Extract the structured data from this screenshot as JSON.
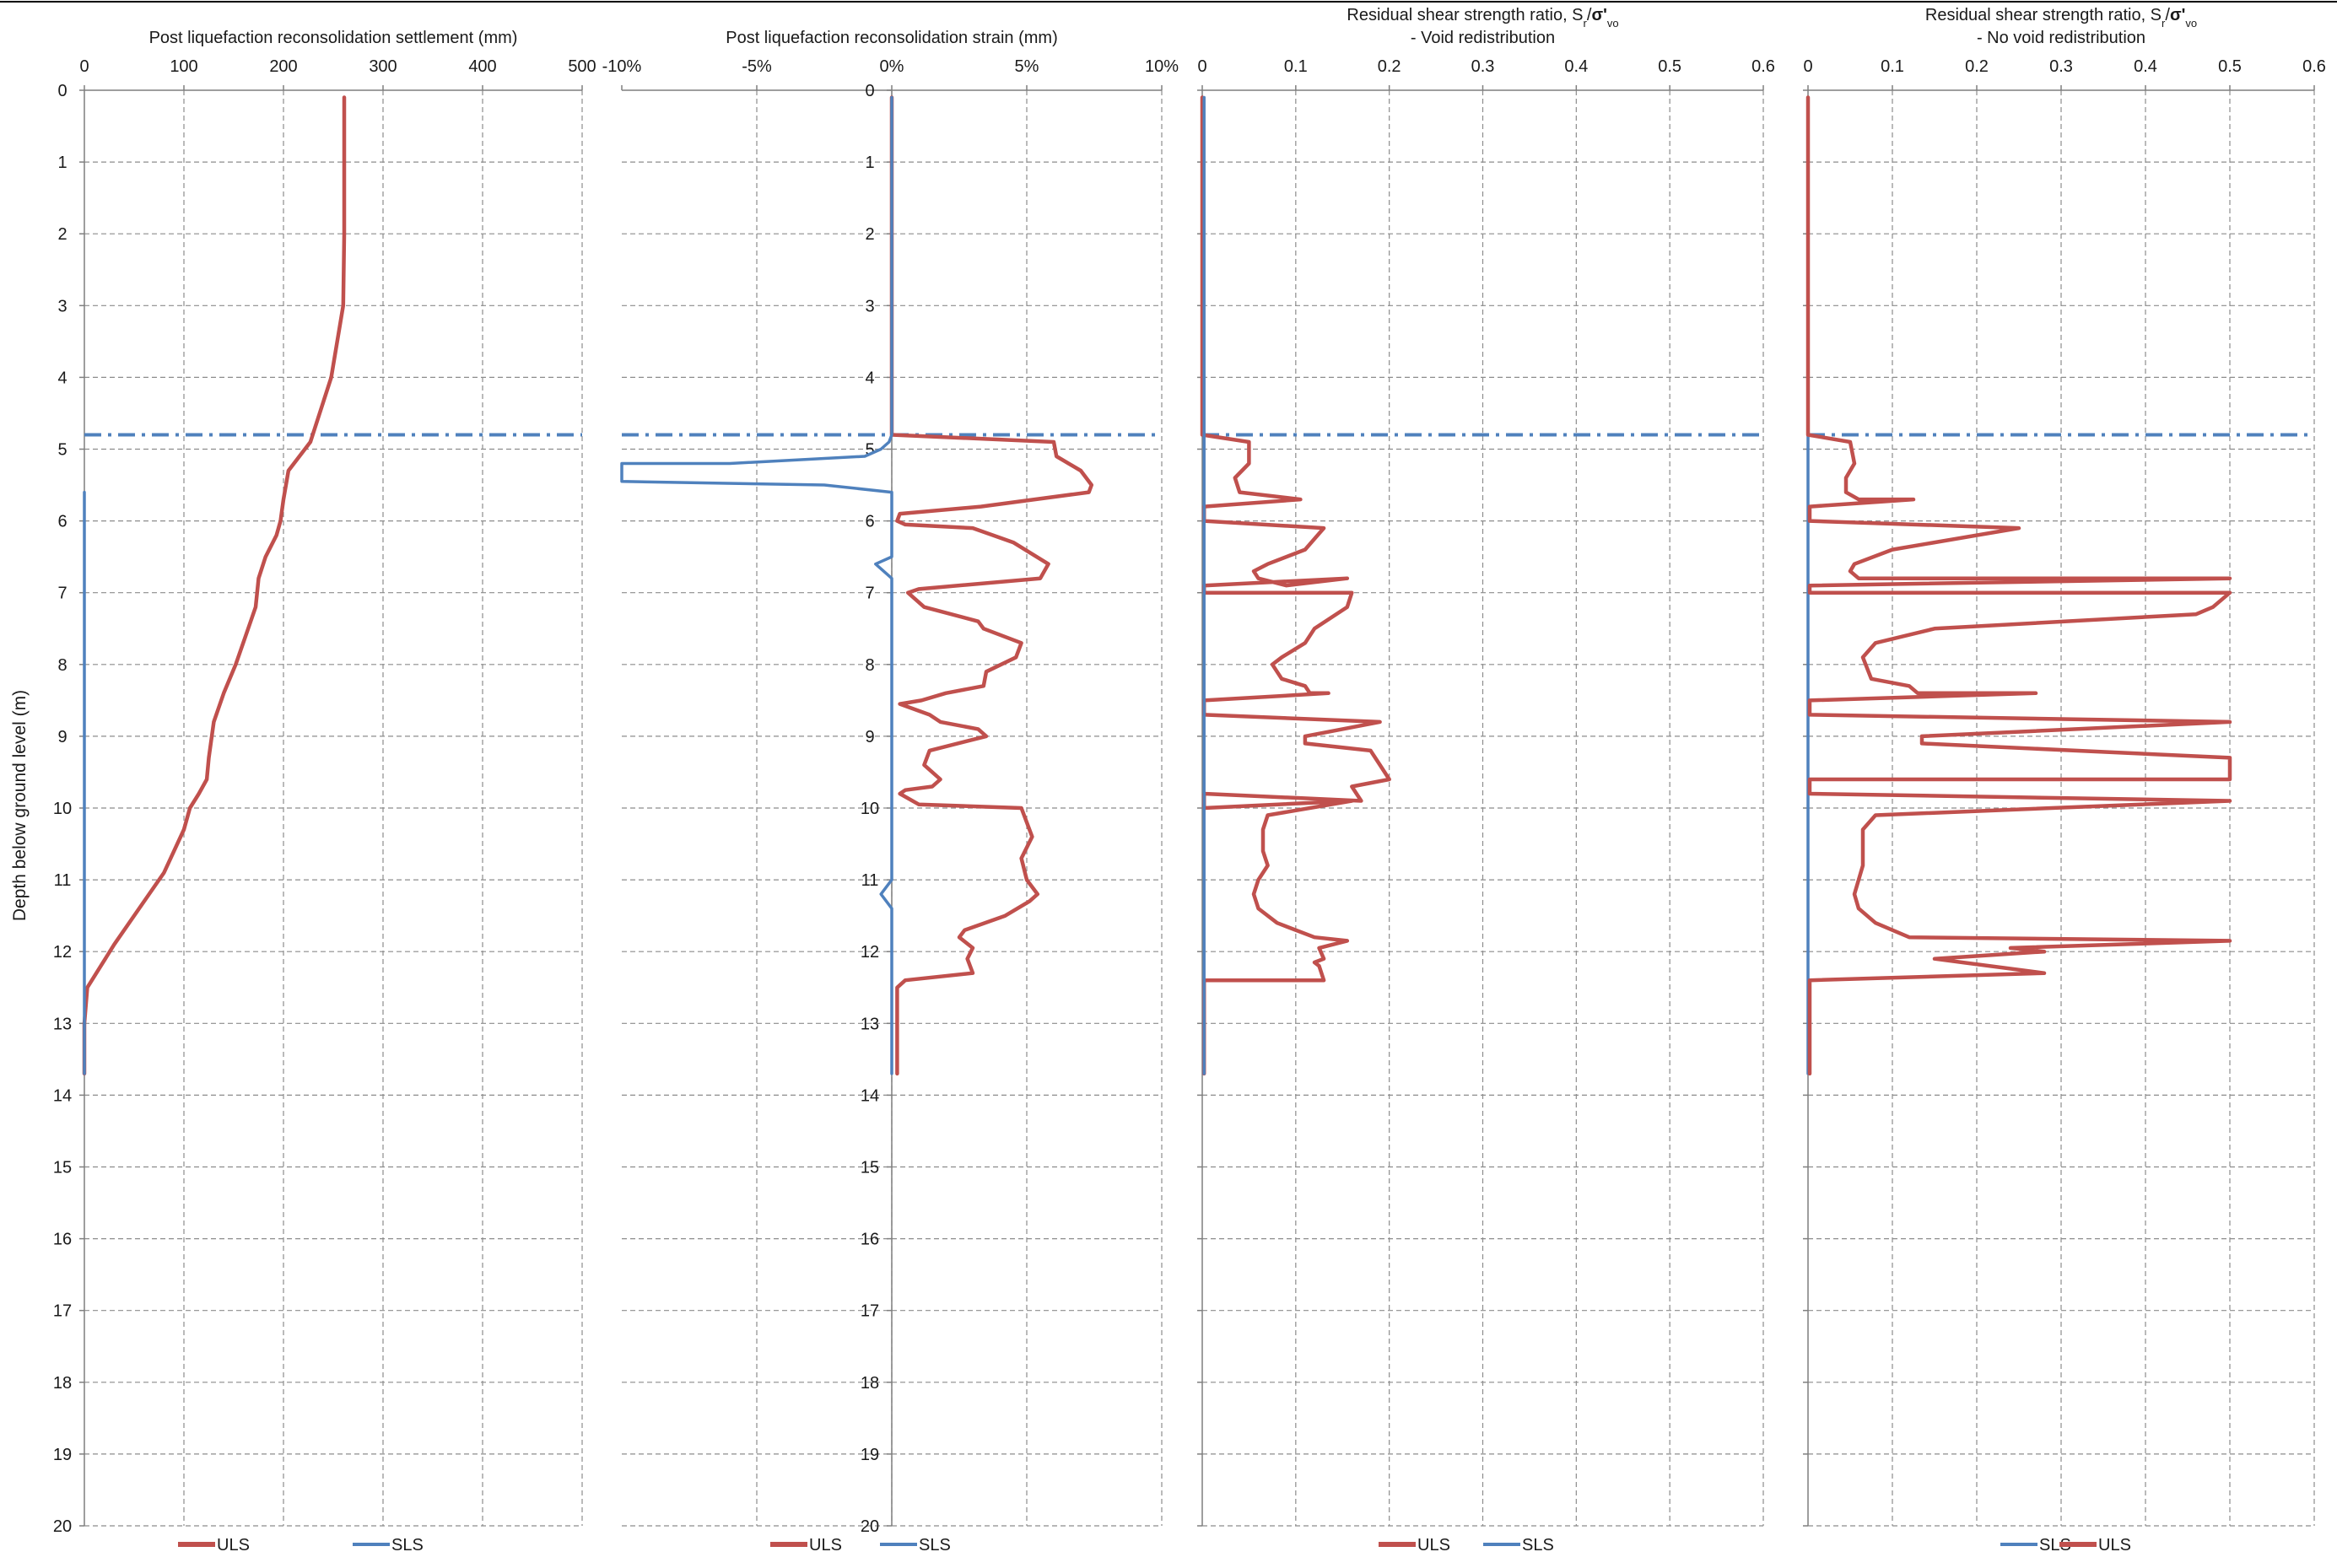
{
  "figure": {
    "ylabel": "Depth below ground level (m)",
    "colors": {
      "uls": "#c0504d",
      "sls": "#4f81bd",
      "water_table": "#4f81bd",
      "grid": "#8c8c8c",
      "axis": "#7f7f7f"
    },
    "water_table_depth": 4.8
  },
  "chart_data": [
    {
      "type": "line",
      "title": "Post liquefaction reconsolidation settlement (mm)",
      "title_line2": "",
      "xlim": [
        0,
        500
      ],
      "x_ticks": [
        0,
        100,
        200,
        300,
        400,
        500
      ],
      "x_tick_labels": [
        "0",
        "100",
        "200",
        "300",
        "400",
        "500"
      ],
      "ylim": [
        0,
        20
      ],
      "y_ticks": [
        0,
        1,
        2,
        3,
        4,
        5,
        6,
        7,
        8,
        9,
        10,
        11,
        12,
        13,
        14,
        15,
        16,
        17,
        18,
        19,
        20
      ],
      "y_ticks_show_labels": true,
      "legend": [
        "ULS",
        "SLS"
      ],
      "series": [
        {
          "name": "ULS",
          "color": "#c0504d",
          "width": 3,
          "x": [
            261,
            261,
            261,
            260,
            248,
            227,
            205,
            200,
            197,
            193,
            182,
            175,
            172,
            162,
            152,
            140,
            130,
            125,
            123,
            115,
            106,
            100,
            80,
            55,
            30,
            12,
            3,
            0,
            0
          ],
          "y": [
            0.1,
            1,
            2,
            3,
            4,
            4.9,
            5.3,
            5.7,
            6,
            6.2,
            6.5,
            6.8,
            7.2,
            7.6,
            8,
            8.4,
            8.8,
            9.3,
            9.6,
            9.8,
            10.0,
            10.3,
            10.9,
            11.4,
            11.9,
            12.3,
            12.5,
            13,
            13.7
          ]
        },
        {
          "name": "SLS",
          "color": "#4f81bd",
          "width": 2,
          "x": [
            0,
            0,
            0
          ],
          "y": [
            5.6,
            10,
            13.7
          ]
        }
      ]
    },
    {
      "type": "line",
      "title": "Post liquefaction reconsolidation strain (mm)",
      "title_line2": "",
      "xlim": [
        -0.1,
        0.1
      ],
      "x_ticks": [
        -0.1,
        -0.05,
        0,
        0.05,
        0.1
      ],
      "x_tick_labels": [
        "-10%",
        "-5%",
        "0%",
        "5%",
        "10%"
      ],
      "ylim": [
        0,
        20
      ],
      "y_ticks": [
        0,
        1,
        2,
        3,
        4,
        5,
        6,
        7,
        8,
        9,
        10,
        11,
        12,
        13,
        14,
        15,
        16,
        17,
        18,
        19,
        20
      ],
      "y_ticks_show_labels": true,
      "legend": [
        "ULS",
        "SLS"
      ],
      "series": [
        {
          "name": "ULS",
          "color": "#c0504d",
          "width": 3,
          "x": [
            0,
            0,
            0.06,
            0.061,
            0.07,
            0.074,
            0.073,
            0.033,
            0.003,
            0.002,
            0.005,
            0.03,
            0.045,
            0.058,
            0.055,
            0.01,
            0.006,
            0.012,
            0.032,
            0.034,
            0.048,
            0.046,
            0.035,
            0.034,
            0.02,
            0.011,
            0.003,
            0.014,
            0.018,
            0.032,
            0.035,
            0.014,
            0.012,
            0.018,
            0.015,
            0.005,
            0.003,
            0.01,
            0.048,
            0.049,
            0.052,
            0.048,
            0.05,
            0.054,
            0.051,
            0.042,
            0.027,
            0.025,
            0.03,
            0.028,
            0.03,
            0.005,
            0.002,
            0.002,
            0.002
          ],
          "y": [
            0.1,
            4.8,
            4.9,
            5.1,
            5.3,
            5.5,
            5.6,
            5.8,
            5.9,
            6.0,
            6.05,
            6.1,
            6.3,
            6.6,
            6.8,
            6.95,
            7.0,
            7.2,
            7.4,
            7.5,
            7.7,
            7.9,
            8.1,
            8.3,
            8.4,
            8.5,
            8.55,
            8.7,
            8.8,
            8.9,
            9.0,
            9.2,
            9.4,
            9.6,
            9.7,
            9.75,
            9.8,
            9.95,
            10.0,
            10.1,
            10.4,
            10.7,
            11.0,
            11.2,
            11.3,
            11.5,
            11.7,
            11.8,
            11.95,
            12.1,
            12.3,
            12.4,
            12.5,
            13,
            13.7
          ]
        },
        {
          "name": "SLS",
          "color": "#4f81bd",
          "width": 2,
          "x": [
            0,
            0,
            -0.001,
            -0.004,
            -0.01,
            -0.06,
            -0.1,
            -0.1,
            -0.025,
            0,
            0,
            -0.006,
            0,
            0,
            0,
            -0.004,
            0,
            0,
            0
          ],
          "y": [
            0.1,
            4.8,
            4.9,
            5.0,
            5.1,
            5.2,
            5.2,
            5.45,
            5.5,
            5.6,
            6.5,
            6.6,
            6.8,
            10,
            11,
            11.2,
            11.4,
            12,
            13.7
          ]
        }
      ]
    },
    {
      "type": "line",
      "title": "Residual shear strength ratio, Sr/σ'vo",
      "title_line2": "- Void redistribution",
      "xlim": [
        0,
        0.6
      ],
      "x_ticks": [
        0,
        0.1,
        0.2,
        0.3,
        0.4,
        0.5,
        0.6
      ],
      "x_tick_labels": [
        "0",
        "0.1",
        "0.2",
        "0.3",
        "0.4",
        "0.5",
        "0.6"
      ],
      "ylim": [
        0,
        20
      ],
      "y_ticks": [
        0,
        1,
        2,
        3,
        4,
        5,
        6,
        7,
        8,
        9,
        10,
        11,
        12,
        13,
        14,
        15,
        16,
        17,
        18,
        19,
        20
      ],
      "y_ticks_show_labels": false,
      "legend": [
        "ULS",
        "SLS"
      ],
      "series": [
        {
          "name": "ULS",
          "color": "#c0504d",
          "width": 3,
          "x": [
            0,
            0,
            0.05,
            0.05,
            0.035,
            0.04,
            0.105,
            0.002,
            0.002,
            0.13,
            0.11,
            0.07,
            0.055,
            0.06,
            0.09,
            0.155,
            0.002,
            0.002,
            0.16,
            0.155,
            0.12,
            0.11,
            0.085,
            0.075,
            0.085,
            0.11,
            0.115,
            0.135,
            0.002,
            0.002,
            0.19,
            0.11,
            0.11,
            0.18,
            0.19,
            0.2,
            0.16,
            0.17,
            0.002,
            0.002,
            0.16,
            0.07,
            0.065,
            0.065,
            0.07,
            0.06,
            0.055,
            0.06,
            0.08,
            0.12,
            0.155,
            0.125,
            0.13,
            0.12,
            0.125,
            0.13,
            0.002,
            0.002
          ],
          "y": [
            0.1,
            4.8,
            4.9,
            5.2,
            5.4,
            5.6,
            5.7,
            5.8,
            6.0,
            6.1,
            6.4,
            6.6,
            6.7,
            6.8,
            6.9,
            6.8,
            6.9,
            7.0,
            7.0,
            7.2,
            7.5,
            7.7,
            7.9,
            8.0,
            8.2,
            8.3,
            8.4,
            8.4,
            8.5,
            8.7,
            8.8,
            9.0,
            9.1,
            9.2,
            9.4,
            9.6,
            9.7,
            9.9,
            9.8,
            10.0,
            9.9,
            10.1,
            10.3,
            10.6,
            10.8,
            11.0,
            11.2,
            11.4,
            11.6,
            11.8,
            11.85,
            11.95,
            12.1,
            12.15,
            12.2,
            12.4,
            12.4,
            13.7
          ]
        },
        {
          "name": "SLS",
          "color": "#4f81bd",
          "width": 2,
          "x": [
            0.002,
            0.002
          ],
          "y": [
            0.1,
            13.7
          ]
        }
      ]
    },
    {
      "type": "line",
      "title": "Residual shear strength ratio, Sr/σ'vo",
      "title_line2": "- No void redistribution",
      "xlim": [
        0,
        0.6
      ],
      "x_ticks": [
        0,
        0.1,
        0.2,
        0.3,
        0.4,
        0.5,
        0.6
      ],
      "x_tick_labels": [
        "0",
        "0.1",
        "0.2",
        "0.3",
        "0.4",
        "0.5",
        "0.6"
      ],
      "ylim": [
        0,
        20
      ],
      "y_ticks": [
        0,
        1,
        2,
        3,
        4,
        5,
        6,
        7,
        8,
        9,
        10,
        11,
        12,
        13,
        14,
        15,
        16,
        17,
        18,
        19,
        20
      ],
      "y_ticks_show_labels": false,
      "legend": [
        "SLS",
        "ULS"
      ],
      "series": [
        {
          "name": "SLS",
          "color": "#4f81bd",
          "width": 2,
          "x": [
            0,
            0
          ],
          "y": [
            0.1,
            13.7
          ]
        },
        {
          "name": "ULS",
          "color": "#c0504d",
          "width": 3,
          "x": [
            0,
            0,
            0.05,
            0.055,
            0.045,
            0.045,
            0.06,
            0.125,
            0.002,
            0.002,
            0.25,
            0.1,
            0.055,
            0.05,
            0.06,
            0.1,
            0.5,
            0.002,
            0.002,
            0.5,
            0.48,
            0.46,
            0.15,
            0.08,
            0.065,
            0.075,
            0.12,
            0.13,
            0.27,
            0.002,
            0.002,
            0.5,
            0.135,
            0.135,
            0.5,
            0.5,
            0.002,
            0.002,
            0.5,
            0.08,
            0.065,
            0.065,
            0.065,
            0.06,
            0.055,
            0.06,
            0.08,
            0.12,
            0.5,
            0.24,
            0.28,
            0.15,
            0.28,
            0.002,
            0.002
          ],
          "y": [
            0.1,
            4.8,
            4.9,
            5.2,
            5.4,
            5.6,
            5.7,
            5.7,
            5.8,
            6.0,
            6.1,
            6.4,
            6.6,
            6.7,
            6.8,
            6.8,
            6.8,
            6.9,
            7.0,
            7.0,
            7.2,
            7.3,
            7.5,
            7.7,
            7.9,
            8.2,
            8.3,
            8.4,
            8.4,
            8.5,
            8.7,
            8.8,
            9.0,
            9.1,
            9.3,
            9.6,
            9.6,
            9.8,
            9.9,
            10.1,
            10.3,
            10.6,
            10.8,
            11.0,
            11.2,
            11.4,
            11.6,
            11.8,
            11.85,
            11.95,
            12.0,
            12.1,
            12.3,
            12.4,
            13.7
          ]
        }
      ]
    }
  ]
}
